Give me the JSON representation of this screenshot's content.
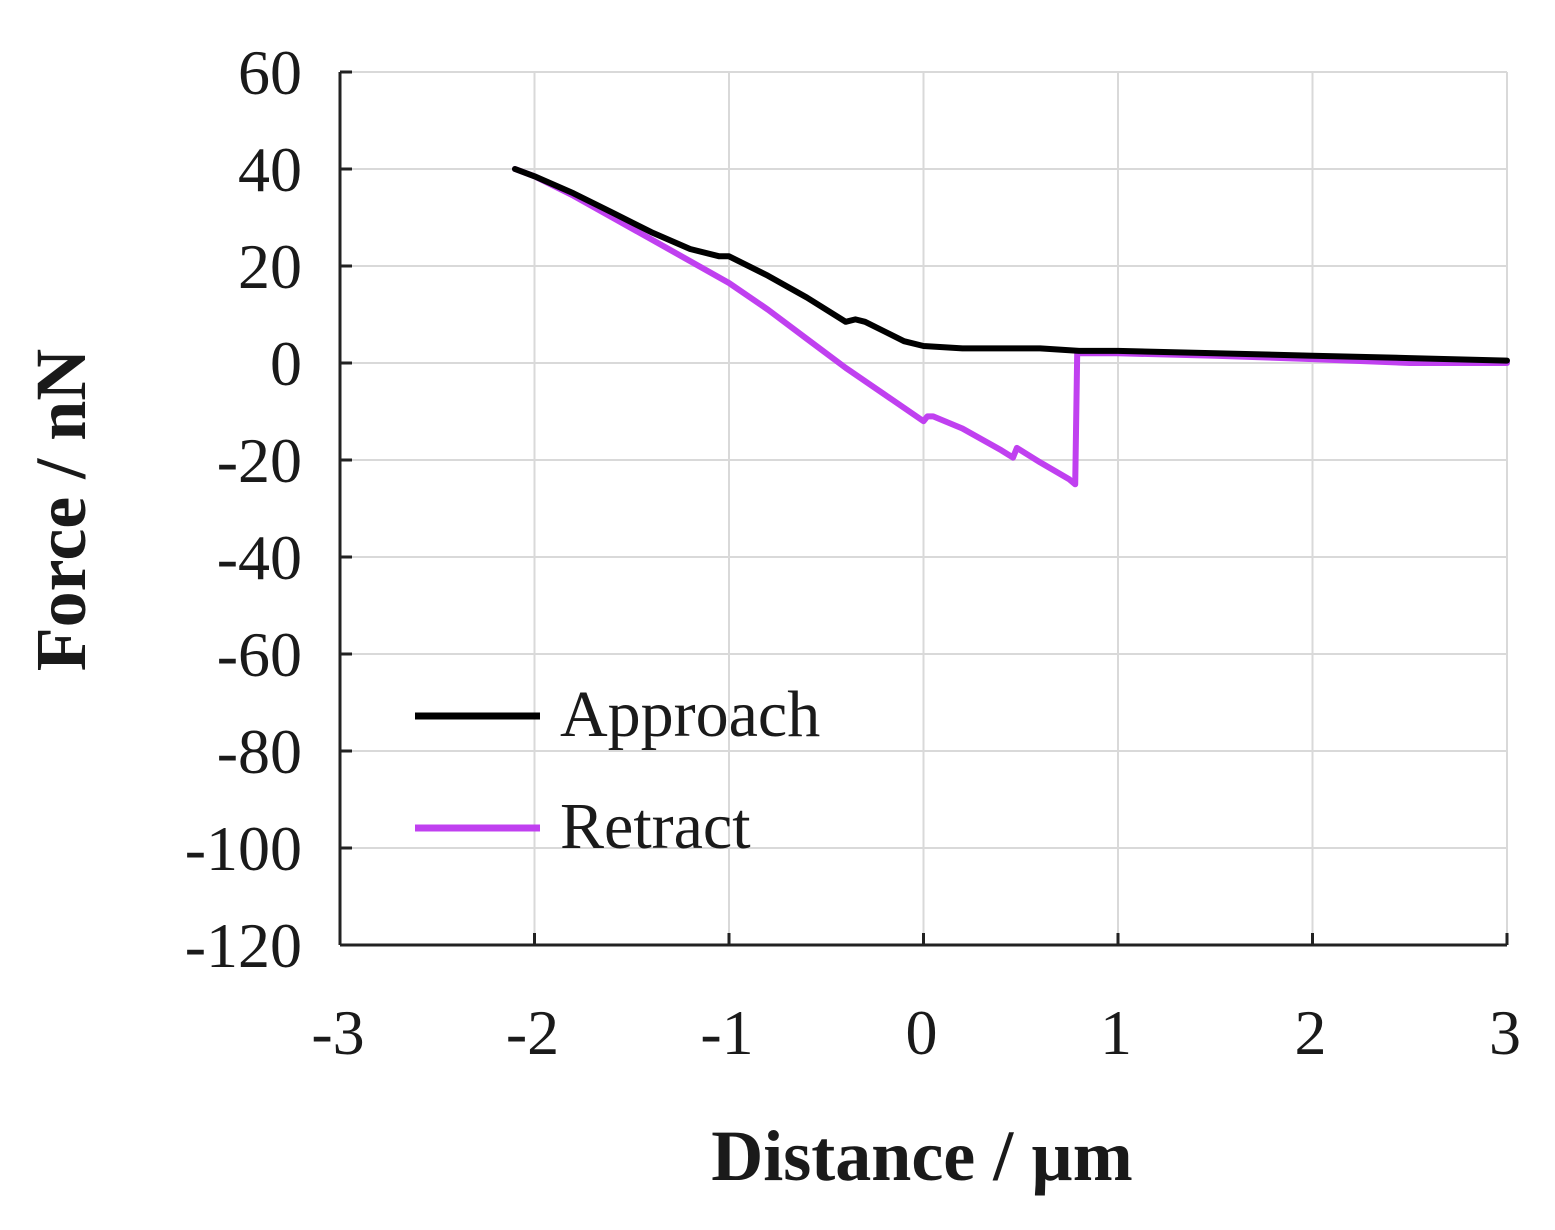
{
  "chart_data": {
    "type": "line",
    "xlabel": "Distance / µm",
    "ylabel": "Force / nN",
    "xlim": [
      -3,
      3
    ],
    "ylim": [
      -120,
      60
    ],
    "xticks": [
      -3,
      -2,
      -1,
      0,
      1,
      2,
      3
    ],
    "yticks": [
      60,
      40,
      20,
      0,
      -20,
      -40,
      -60,
      -80,
      -100,
      -120
    ],
    "grid": true,
    "legend_position": "lower-left",
    "series": [
      {
        "name": "Approach",
        "color": "#000000",
        "x": [
          -2.1,
          -2.0,
          -1.8,
          -1.6,
          -1.4,
          -1.2,
          -1.05,
          -1.0,
          -0.8,
          -0.6,
          -0.4,
          -0.35,
          -0.3,
          -0.2,
          -0.1,
          0.0,
          0.2,
          0.4,
          0.6,
          0.8,
          1.0,
          1.5,
          2.0,
          2.5,
          3.0
        ],
        "y": [
          40,
          38.5,
          35,
          31,
          27,
          23.5,
          22,
          22,
          18,
          13.5,
          8.5,
          9,
          8.5,
          6.5,
          4.5,
          3.5,
          3.0,
          3.0,
          3.0,
          2.5,
          2.5,
          2.0,
          1.5,
          1.0,
          0.5
        ]
      },
      {
        "name": "Retract",
        "color": "#c040f0",
        "x": [
          -2.1,
          -2.0,
          -1.8,
          -1.6,
          -1.4,
          -1.2,
          -1.0,
          -0.8,
          -0.6,
          -0.4,
          -0.2,
          0.0,
          0.02,
          0.05,
          0.2,
          0.4,
          0.46,
          0.48,
          0.6,
          0.75,
          0.78,
          0.79,
          0.8,
          1.0,
          1.5,
          2.0,
          2.5,
          3.0
        ],
        "y": [
          40,
          38.5,
          34.5,
          30,
          25.5,
          21,
          16.5,
          11,
          5,
          -1,
          -6.5,
          -12,
          -11,
          -11,
          -13.5,
          -18,
          -19.5,
          -17.5,
          -20.5,
          -24,
          -25,
          2.0,
          2.0,
          2.0,
          1.5,
          0.8,
          0.0,
          0.0
        ]
      }
    ]
  }
}
